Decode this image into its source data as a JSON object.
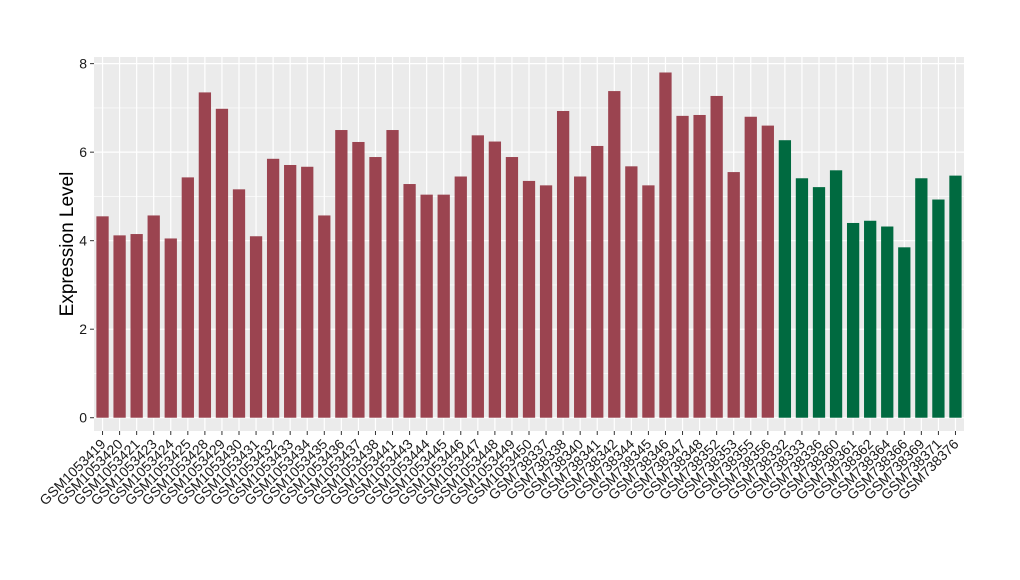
{
  "chart_data": {
    "type": "bar",
    "title": "",
    "xlabel": "",
    "ylabel": "Expression Level",
    "ylim": [
      -0.3,
      8.15
    ],
    "yticks": [
      0,
      2,
      4,
      6,
      8
    ],
    "grid": true,
    "legend": "none",
    "colors": {
      "group1": "#9b4450",
      "group2": "#006a40",
      "panel": "#ebebeb",
      "gridline": "#ffffff"
    },
    "categories": [
      "GSM1053419",
      "GSM1053420",
      "GSM1053421",
      "GSM1053423",
      "GSM1053424",
      "GSM1053425",
      "GSM1053428",
      "GSM1053429",
      "GSM1053430",
      "GSM1053431",
      "GSM1053432",
      "GSM1053433",
      "GSM1053434",
      "GSM1053435",
      "GSM1053436",
      "GSM1053437",
      "GSM1053438",
      "GSM1053441",
      "GSM1053443",
      "GSM1053444",
      "GSM1053445",
      "GSM1053446",
      "GSM1053447",
      "GSM1053448",
      "GSM1053449",
      "GSM1053450",
      "GSM738337",
      "GSM738338",
      "GSM738340",
      "GSM738341",
      "GSM738342",
      "GSM738344",
      "GSM738345",
      "GSM738346",
      "GSM738347",
      "GSM738348",
      "GSM738352",
      "GSM738353",
      "GSM738355",
      "GSM738356",
      "GSM738332",
      "GSM738333",
      "GSM738336",
      "GSM738360",
      "GSM738361",
      "GSM738362",
      "GSM738364",
      "GSM738366",
      "GSM738369",
      "GSM738371",
      "GSM738376"
    ],
    "values": [
      4.55,
      4.12,
      4.15,
      4.57,
      4.05,
      5.43,
      7.35,
      6.98,
      5.16,
      4.1,
      5.85,
      5.71,
      5.67,
      4.57,
      6.5,
      6.23,
      5.89,
      6.5,
      5.28,
      5.04,
      5.04,
      5.45,
      6.38,
      6.24,
      5.89,
      5.35,
      5.25,
      6.93,
      5.45,
      6.14,
      7.38,
      5.68,
      5.25,
      7.8,
      6.82,
      6.84,
      7.27,
      5.55,
      6.8,
      6.6,
      6.27,
      5.41,
      5.21,
      5.59,
      4.4,
      4.45,
      4.32,
      3.85,
      5.41,
      4.93,
      5.47
    ],
    "groups": [
      "g1",
      "g1",
      "g1",
      "g1",
      "g1",
      "g1",
      "g1",
      "g1",
      "g1",
      "g1",
      "g1",
      "g1",
      "g1",
      "g1",
      "g1",
      "g1",
      "g1",
      "g1",
      "g1",
      "g1",
      "g1",
      "g1",
      "g1",
      "g1",
      "g1",
      "g1",
      "g1",
      "g1",
      "g1",
      "g1",
      "g1",
      "g1",
      "g1",
      "g1",
      "g1",
      "g1",
      "g1",
      "g1",
      "g1",
      "g1",
      "g2",
      "g2",
      "g2",
      "g2",
      "g2",
      "g2",
      "g2",
      "g2",
      "g2",
      "g2",
      "g2"
    ]
  }
}
